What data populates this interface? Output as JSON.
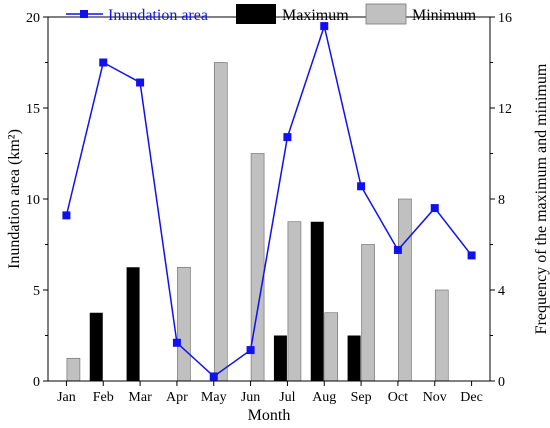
{
  "chart_data": {
    "type": "bar",
    "categories": [
      "Jan",
      "Feb",
      "Mar",
      "Apr",
      "May",
      "Jun",
      "Jul",
      "Aug",
      "Sep",
      "Oct",
      "Nov",
      "Dec"
    ],
    "xlabel": "Month",
    "ylabel_left": "Inundation area (km²)",
    "ylabel_right": "Frequency of the maximum and minimum",
    "ylim_left": [
      0,
      20
    ],
    "ylim_right": [
      0,
      16
    ],
    "yticks_left": [
      0,
      5,
      10,
      15,
      20
    ],
    "yticks_right": [
      0,
      4,
      8,
      12,
      16
    ],
    "grid": false,
    "legend_position": "top",
    "series": [
      {
        "name": "Inundation area",
        "kind": "line",
        "axis": "left",
        "color": "#1111ee",
        "values": [
          9.1,
          17.5,
          16.4,
          2.1,
          0.25,
          1.7,
          13.4,
          19.5,
          10.7,
          7.2,
          9.5,
          6.9
        ]
      },
      {
        "name": "Maximum",
        "kind": "bar",
        "axis": "right",
        "color": "#000000",
        "values": [
          0,
          3,
          5,
          0,
          0,
          0,
          2,
          7,
          2,
          0,
          0,
          0
        ]
      },
      {
        "name": "Minimum",
        "kind": "bar",
        "axis": "right",
        "color": "#c0c0c0",
        "values": [
          1,
          0,
          0,
          5,
          14,
          10,
          7,
          3,
          6,
          8,
          4,
          0
        ]
      }
    ]
  }
}
